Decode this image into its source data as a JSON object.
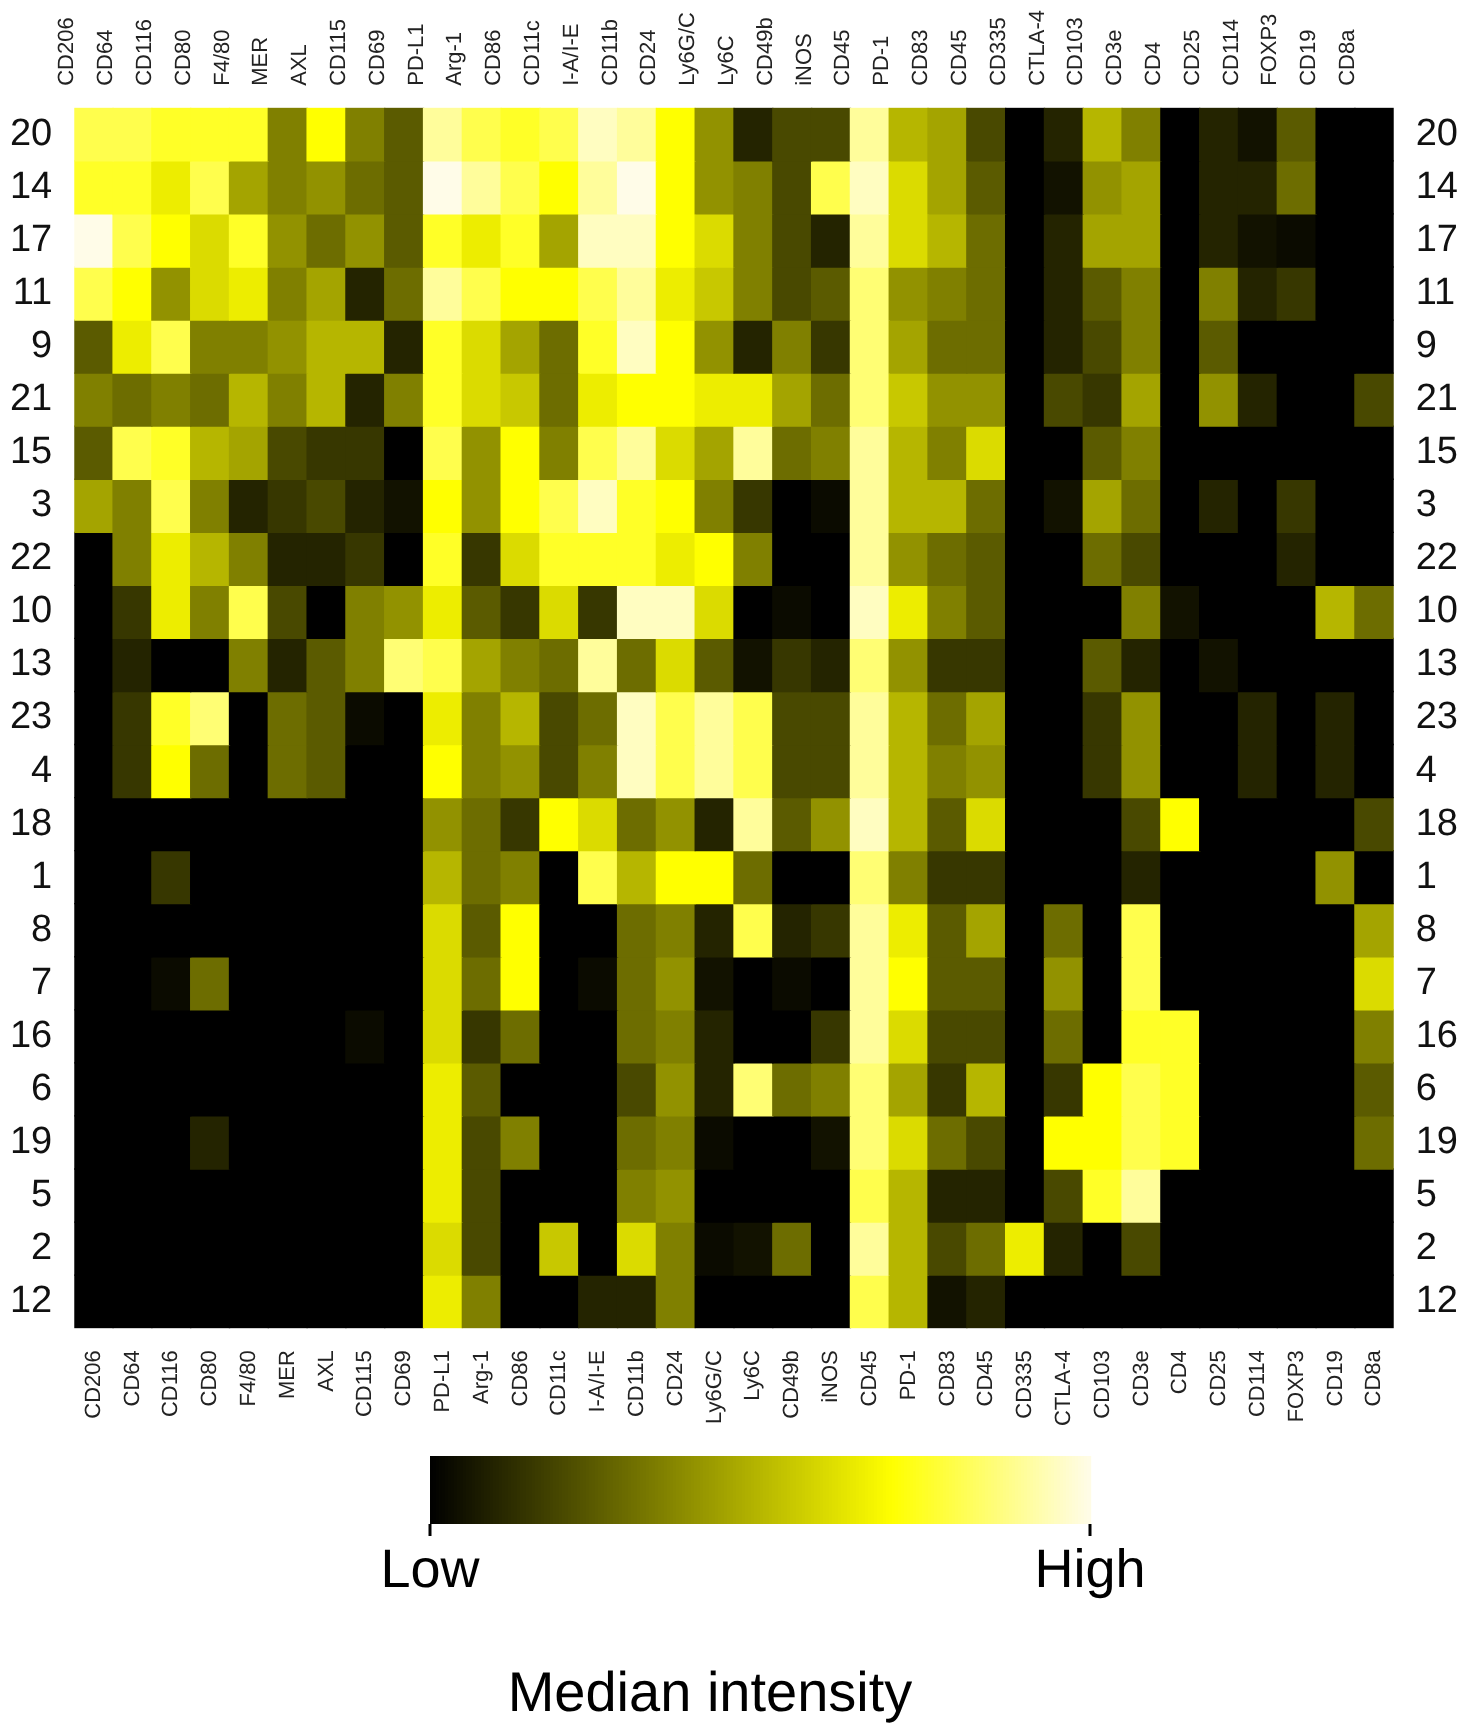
{
  "chart_data": {
    "type": "heatmap",
    "categories": [
      "CD206",
      "CD64",
      "CD116",
      "CD80",
      "F4/80",
      "MER",
      "AXL",
      "CD115",
      "CD69",
      "PD-L1",
      "Arg-1",
      "CD86",
      "CD11c",
      "I-A/I-E",
      "CD11b",
      "CD24",
      "Ly6G/C",
      "Ly6C",
      "CD49b",
      "iNOS",
      "CD45",
      "PD-1",
      "CD83",
      "CD45",
      "CD335",
      "CTLA-4",
      "CD103",
      "CD3e",
      "CD4",
      "CD25",
      "CD114",
      "FOXP3",
      "CD19",
      "CD8a"
    ],
    "y_categories": [
      "20",
      "14",
      "17",
      "11",
      "9",
      "21",
      "15",
      "3",
      "22",
      "10",
      "13",
      "23",
      "4",
      "18",
      "1",
      "8",
      "7",
      "16",
      "6",
      "19",
      "5",
      "2",
      "12"
    ],
    "y2_categories": [
      "20",
      "14",
      "17",
      "11",
      "9",
      "21",
      "15",
      "3",
      "22",
      "10",
      "13",
      "23",
      "4",
      "18",
      "1",
      "8",
      "7",
      "16",
      "6",
      "19",
      "5",
      "2",
      "12"
    ],
    "cells": [
      [
        0.8,
        0.8,
        0.75,
        0.75,
        0.75,
        0.35,
        0.7,
        0.35,
        0.25,
        0.9,
        0.8,
        0.75,
        0.8,
        0.95,
        0.9,
        0.7,
        0.4,
        0.1,
        0.2,
        0.2,
        0.9,
        0.5,
        0.45,
        0.2,
        0,
        0.1,
        0.5,
        0.35,
        0,
        0.1,
        0.05,
        0.25,
        0,
        0
      ],
      [
        0.75,
        0.75,
        0.65,
        0.8,
        0.45,
        0.35,
        0.4,
        0.3,
        0.25,
        1,
        0.9,
        0.8,
        0.7,
        0.9,
        1,
        0.7,
        0.4,
        0.35,
        0.2,
        0.8,
        0.95,
        0.6,
        0.45,
        0.25,
        0,
        0.05,
        0.4,
        0.45,
        0,
        0.1,
        0.1,
        0.3,
        0,
        0
      ],
      [
        1,
        0.8,
        0.7,
        0.6,
        0.75,
        0.4,
        0.3,
        0.4,
        0.25,
        0.75,
        0.65,
        0.75,
        0.45,
        0.95,
        0.95,
        0.7,
        0.6,
        0.35,
        0.2,
        0.1,
        0.9,
        0.6,
        0.5,
        0.3,
        0,
        0.1,
        0.45,
        0.45,
        0,
        0.1,
        0.05,
        0.03,
        0,
        0
      ],
      [
        0.8,
        0.7,
        0.4,
        0.6,
        0.65,
        0.35,
        0.45,
        0.1,
        0.3,
        0.9,
        0.8,
        0.7,
        0.7,
        0.8,
        0.9,
        0.65,
        0.55,
        0.35,
        0.2,
        0.25,
        0.85,
        0.4,
        0.35,
        0.3,
        0,
        0.1,
        0.25,
        0.35,
        0,
        0.35,
        0.1,
        0.15,
        0,
        0
      ],
      [
        0.25,
        0.65,
        0.8,
        0.35,
        0.35,
        0.4,
        0.5,
        0.5,
        0.1,
        0.75,
        0.6,
        0.45,
        0.3,
        0.75,
        0.95,
        0.7,
        0.4,
        0.1,
        0.35,
        0.15,
        0.85,
        0.45,
        0.3,
        0.3,
        0,
        0.1,
        0.2,
        0.35,
        0,
        0.25,
        0,
        0,
        0,
        0
      ],
      [
        0.35,
        0.3,
        0.35,
        0.3,
        0.5,
        0.35,
        0.5,
        0.1,
        0.35,
        0.75,
        0.6,
        0.55,
        0.3,
        0.65,
        0.7,
        0.7,
        0.65,
        0.65,
        0.45,
        0.3,
        0.85,
        0.55,
        0.4,
        0.4,
        0,
        0.2,
        0.15,
        0.45,
        0,
        0.4,
        0.1,
        0,
        0,
        0.2
      ],
      [
        0.25,
        0.8,
        0.75,
        0.5,
        0.45,
        0.2,
        0.15,
        0.15,
        0,
        0.8,
        0.4,
        0.7,
        0.35,
        0.8,
        0.9,
        0.6,
        0.45,
        0.9,
        0.3,
        0.35,
        0.9,
        0.5,
        0.35,
        0.6,
        0,
        0,
        0.25,
        0.35,
        0,
        0,
        0,
        0,
        0,
        0
      ],
      [
        0.45,
        0.35,
        0.8,
        0.35,
        0.1,
        0.15,
        0.2,
        0.1,
        0.05,
        0.7,
        0.4,
        0.7,
        0.8,
        0.95,
        0.75,
        0.7,
        0.35,
        0.15,
        0,
        0.03,
        0.9,
        0.5,
        0.5,
        0.3,
        0,
        0.05,
        0.45,
        0.3,
        0,
        0.1,
        0,
        0.15,
        0,
        0
      ],
      [
        0,
        0.35,
        0.65,
        0.5,
        0.35,
        0.1,
        0.1,
        0.15,
        0,
        0.75,
        0.15,
        0.6,
        0.75,
        0.75,
        0.75,
        0.65,
        0.7,
        0.35,
        0,
        0,
        0.9,
        0.4,
        0.3,
        0.25,
        0,
        0,
        0.3,
        0.2,
        0,
        0,
        0,
        0.1,
        0,
        0
      ],
      [
        0,
        0.15,
        0.65,
        0.35,
        0.8,
        0.2,
        0,
        0.35,
        0.4,
        0.65,
        0.25,
        0.15,
        0.6,
        0.15,
        0.95,
        0.95,
        0.6,
        0,
        0.03,
        0,
        0.95,
        0.65,
        0.35,
        0.25,
        0,
        0,
        0,
        0.35,
        0.05,
        0,
        0,
        0,
        0.5,
        0.3
      ],
      [
        0,
        0.1,
        0,
        0,
        0.35,
        0.1,
        0.25,
        0.35,
        0.85,
        0.8,
        0.45,
        0.35,
        0.3,
        0.9,
        0.3,
        0.6,
        0.25,
        0.05,
        0.15,
        0.1,
        0.85,
        0.4,
        0.15,
        0.15,
        0,
        0,
        0.25,
        0.1,
        0,
        0.05,
        0,
        0,
        0,
        0
      ],
      [
        0,
        0.15,
        0.75,
        0.85,
        0,
        0.3,
        0.25,
        0.03,
        0,
        0.65,
        0.35,
        0.5,
        0.2,
        0.3,
        0.95,
        0.8,
        0.9,
        0.8,
        0.2,
        0.2,
        0.9,
        0.5,
        0.3,
        0.45,
        0,
        0,
        0.15,
        0.4,
        0,
        0,
        0.1,
        0,
        0.1,
        0
      ],
      [
        0,
        0.15,
        0.7,
        0.3,
        0,
        0.3,
        0.25,
        0,
        0,
        0.7,
        0.35,
        0.4,
        0.2,
        0.35,
        0.95,
        0.8,
        0.9,
        0.8,
        0.2,
        0.2,
        0.9,
        0.5,
        0.35,
        0.4,
        0,
        0,
        0.15,
        0.4,
        0,
        0,
        0.1,
        0,
        0.1,
        0
      ],
      [
        0,
        0,
        0,
        0,
        0,
        0,
        0,
        0,
        0,
        0.4,
        0.3,
        0.15,
        0.7,
        0.6,
        0.3,
        0.4,
        0.1,
        0.9,
        0.25,
        0.4,
        0.95,
        0.5,
        0.25,
        0.6,
        0,
        0,
        0,
        0.2,
        0.7,
        0,
        0,
        0,
        0,
        0.2
      ],
      [
        0,
        0,
        0.15,
        0,
        0,
        0,
        0,
        0,
        0,
        0.5,
        0.3,
        0.35,
        0,
        0.8,
        0.5,
        0.7,
        0.7,
        0.3,
        0,
        0,
        0.85,
        0.35,
        0.15,
        0.15,
        0,
        0,
        0,
        0.1,
        0,
        0,
        0,
        0,
        0.4,
        0
      ],
      [
        0,
        0,
        0,
        0,
        0,
        0,
        0,
        0,
        0,
        0.6,
        0.25,
        0.7,
        0,
        0,
        0.3,
        0.35,
        0.1,
        0.8,
        0.1,
        0.15,
        0.9,
        0.65,
        0.25,
        0.45,
        0,
        0.3,
        0,
        0.8,
        0,
        0,
        0,
        0,
        0,
        0.45
      ],
      [
        0,
        0,
        0.03,
        0.3,
        0,
        0,
        0,
        0,
        0,
        0.6,
        0.3,
        0.7,
        0,
        0.03,
        0.3,
        0.4,
        0.05,
        0,
        0.03,
        0,
        0.9,
        0.7,
        0.25,
        0.25,
        0,
        0.4,
        0,
        0.8,
        0,
        0,
        0,
        0,
        0,
        0.6
      ],
      [
        0,
        0,
        0,
        0,
        0,
        0,
        0,
        0.03,
        0,
        0.6,
        0.15,
        0.3,
        0,
        0,
        0.3,
        0.35,
        0.1,
        0,
        0,
        0.15,
        0.9,
        0.6,
        0.2,
        0.2,
        0,
        0.3,
        0,
        0.75,
        0.75,
        0,
        0,
        0,
        0,
        0.35
      ],
      [
        0,
        0,
        0,
        0,
        0,
        0,
        0,
        0,
        0,
        0.65,
        0.25,
        0,
        0,
        0,
        0.2,
        0.4,
        0.1,
        0.85,
        0.3,
        0.35,
        0.85,
        0.45,
        0.15,
        0.5,
        0,
        0.15,
        0.7,
        0.8,
        0.75,
        0,
        0,
        0,
        0,
        0.25
      ],
      [
        0,
        0,
        0,
        0.1,
        0,
        0,
        0,
        0,
        0,
        0.65,
        0.2,
        0.35,
        0,
        0,
        0.3,
        0.35,
        0.03,
        0,
        0,
        0.05,
        0.85,
        0.6,
        0.3,
        0.2,
        0,
        0.7,
        0.7,
        0.8,
        0.75,
        0,
        0,
        0,
        0,
        0.3
      ],
      [
        0,
        0,
        0,
        0,
        0,
        0,
        0,
        0,
        0,
        0.65,
        0.2,
        0,
        0,
        0,
        0.35,
        0.4,
        0,
        0,
        0,
        0,
        0.8,
        0.5,
        0.1,
        0.1,
        0,
        0.2,
        0.75,
        0.9,
        0,
        0,
        0,
        0,
        0,
        0
      ],
      [
        0,
        0,
        0,
        0,
        0,
        0,
        0,
        0,
        0,
        0.6,
        0.2,
        0,
        0.55,
        0,
        0.6,
        0.35,
        0.03,
        0.05,
        0.3,
        0,
        0.9,
        0.5,
        0.2,
        0.3,
        0.65,
        0.1,
        0,
        0.2,
        0,
        0,
        0,
        0,
        0,
        0
      ],
      [
        0,
        0,
        0,
        0,
        0,
        0,
        0,
        0,
        0,
        0.65,
        0.35,
        0,
        0,
        0.1,
        0.1,
        0.35,
        0,
        0,
        0,
        0,
        0.8,
        0.5,
        0.05,
        0.1,
        0,
        0,
        0,
        0,
        0,
        0,
        0,
        0,
        0,
        0
      ]
    ],
    "clim": [
      0,
      1
    ],
    "cticks": [
      {
        "value": 0,
        "label": "Low"
      },
      {
        "value": 1,
        "label": "High"
      }
    ],
    "clabel": "Median intensity"
  }
}
